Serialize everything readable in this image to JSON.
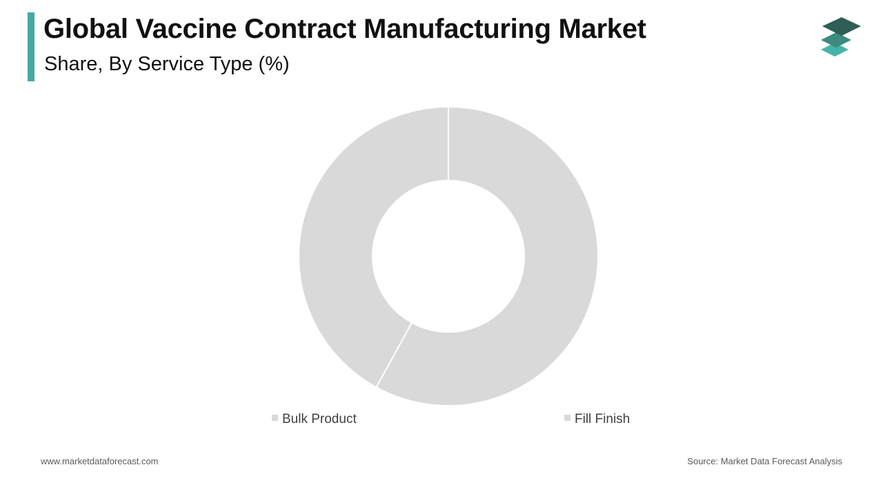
{
  "header": {
    "title": "Global Vaccine Contract Manufacturing Market",
    "subtitle": "Share, By Service Type (%)",
    "accent_color": "#45a8a3",
    "logo_icon": "stacked-layers-icon"
  },
  "chart_data": {
    "type": "pie",
    "variant": "donut",
    "title": "Global Vaccine Contract Manufacturing Market",
    "subtitle": "Share, By Service Type (%)",
    "categories": [
      "Bulk Product",
      "Fill Finish"
    ],
    "values": [
      58,
      42
    ],
    "colors": [
      "#d9d9d9",
      "#d9d9d9"
    ],
    "start_angle_deg": 0,
    "direction": "clockwise",
    "data_labels": false,
    "legend_position": "bottom"
  },
  "footer": {
    "website": "www.marketdataforecast.com",
    "source": "Source: Market Data Forecast Analysis"
  }
}
